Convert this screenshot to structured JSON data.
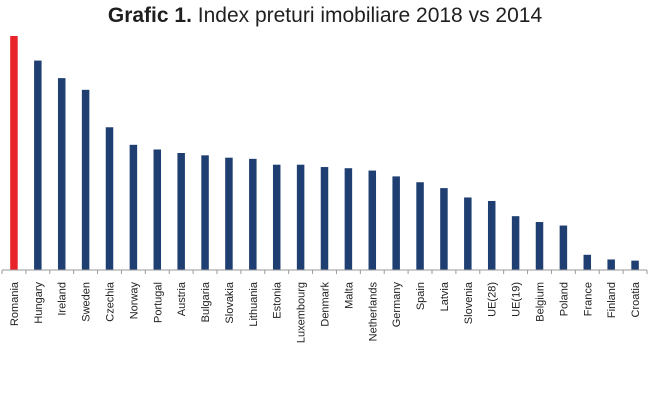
{
  "chart_data": {
    "type": "bar",
    "title_bold": "Grafic 1.",
    "title_rest": "Index preturi imobiliare 2018 vs 2014",
    "xlabel": "",
    "ylabel": "",
    "ylim": [
      0,
      100
    ],
    "grid": false,
    "legend": "none",
    "colors": {
      "default": "#1f3f73",
      "highlight": "#e8232a",
      "axis": "#9a9a9a",
      "label": "#222222"
    },
    "highlight_category": "Romania",
    "categories": [
      "Romania",
      "Hungary",
      "Ireland",
      "Sweden",
      "Czechia",
      "Norway",
      "Portugal",
      "Austria",
      "Bulgaria",
      "Slovakia",
      "Lithuania",
      "Estonia",
      "Luxembourg",
      "Denmark",
      "Malta",
      "Netherlands",
      "Germany",
      "Spain",
      "Latvia",
      "Slovenia",
      "UE(28)",
      "UE(19)",
      "Belgium",
      "Poland",
      "France",
      "Finland",
      "Croatia"
    ],
    "values": [
      100,
      89.5,
      82,
      77,
      61,
      53.5,
      51.5,
      50,
      49,
      48,
      47.5,
      45,
      45,
      44,
      43.5,
      42.5,
      40,
      37.5,
      35,
      31,
      29.5,
      23,
      20.5,
      19,
      6.5,
      4.5,
      4
    ]
  }
}
